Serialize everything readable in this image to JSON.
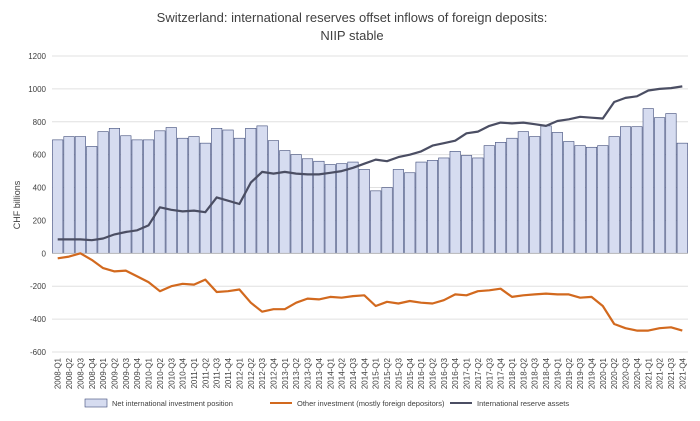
{
  "chart_data": {
    "type": "bar",
    "title": "Switzerland: international reserves offset inflows of foreign deposits:",
    "subtitle": "NIIP stable",
    "xlabel": "",
    "ylabel": "CHF billions",
    "ylim": [
      -600,
      1200
    ],
    "yticks": [
      "1200",
      "1000",
      "800",
      "600",
      "400",
      "200",
      "0",
      "-200",
      "-400",
      "-600"
    ],
    "categories": [
      "2008-Q1",
      "2008-Q2",
      "2008-Q3",
      "2008-Q4",
      "2009-Q1",
      "2009-Q2",
      "2009-Q3",
      "2009-Q4",
      "2010-Q1",
      "2010-Q2",
      "2010-Q3",
      "2010-Q4",
      "2011-Q1",
      "2011-Q2",
      "2011-Q3",
      "2011-Q4",
      "2012-Q1",
      "2012-Q2",
      "2012-Q3",
      "2012-Q4",
      "2013-Q1",
      "2013-Q2",
      "2013-Q3",
      "2013-Q4",
      "2014-Q1",
      "2014-Q2",
      "2014-Q3",
      "2014-Q4",
      "2015-Q1",
      "2015-Q2",
      "2015-Q3",
      "2015-Q4",
      "2016-Q1",
      "2016-Q2",
      "2016-Q3",
      "2016-Q4",
      "2017-Q1",
      "2017-Q2",
      "2017-Q3",
      "2017-Q4",
      "2018-Q1",
      "2018-Q2",
      "2018-Q3",
      "2018-Q4",
      "2019-Q1",
      "2019-Q2",
      "2019-Q3",
      "2019-Q4",
      "2020-Q1",
      "2020-Q2",
      "2020-Q3",
      "2020-Q4",
      "2021-Q1",
      "2021-Q2",
      "2021-Q3",
      "2021-Q4"
    ],
    "series": [
      {
        "name": "Net international investment position",
        "kind": "bar",
        "color": "#d6dcf0",
        "edge": "#3d4a78",
        "values": [
          690,
          710,
          710,
          650,
          740,
          760,
          715,
          690,
          690,
          745,
          765,
          700,
          710,
          670,
          760,
          750,
          700,
          760,
          775,
          685,
          625,
          600,
          575,
          560,
          540,
          545,
          555,
          510,
          380,
          400,
          510,
          490,
          555,
          565,
          580,
          620,
          595,
          580,
          655,
          675,
          700,
          740,
          710,
          775,
          735,
          680,
          655,
          645,
          655,
          710,
          770,
          770,
          880,
          825,
          850,
          670
        ]
      },
      {
        "name": "Other investment (mostly foreign depositors)",
        "kind": "line",
        "color": "#d2691e",
        "values": [
          -30,
          -20,
          0,
          -40,
          -90,
          -110,
          -105,
          -140,
          -175,
          -230,
          -200,
          -185,
          -190,
          -160,
          -235,
          -230,
          -220,
          -300,
          -355,
          -340,
          -340,
          -300,
          -275,
          -280,
          -265,
          -270,
          -260,
          -255,
          -320,
          -295,
          -305,
          -290,
          -300,
          -305,
          -285,
          -250,
          -255,
          -230,
          -225,
          -215,
          -265,
          -255,
          -250,
          -245,
          -250,
          -250,
          -270,
          -265,
          -320,
          -430,
          -455,
          -470,
          -470,
          -455,
          -450,
          -470
        ]
      },
      {
        "name": "International reserve assets",
        "kind": "line",
        "color": "#4b4e63",
        "values": [
          85,
          85,
          85,
          80,
          90,
          115,
          130,
          140,
          170,
          280,
          265,
          255,
          260,
          250,
          340,
          320,
          300,
          430,
          495,
          485,
          495,
          485,
          480,
          480,
          490,
          500,
          520,
          545,
          570,
          560,
          585,
          600,
          620,
          655,
          670,
          685,
          730,
          740,
          775,
          795,
          790,
          795,
          785,
          775,
          805,
          815,
          830,
          825,
          820,
          920,
          945,
          955,
          990,
          1000,
          1005,
          1015
        ]
      }
    ],
    "legend_position": "bottom"
  }
}
